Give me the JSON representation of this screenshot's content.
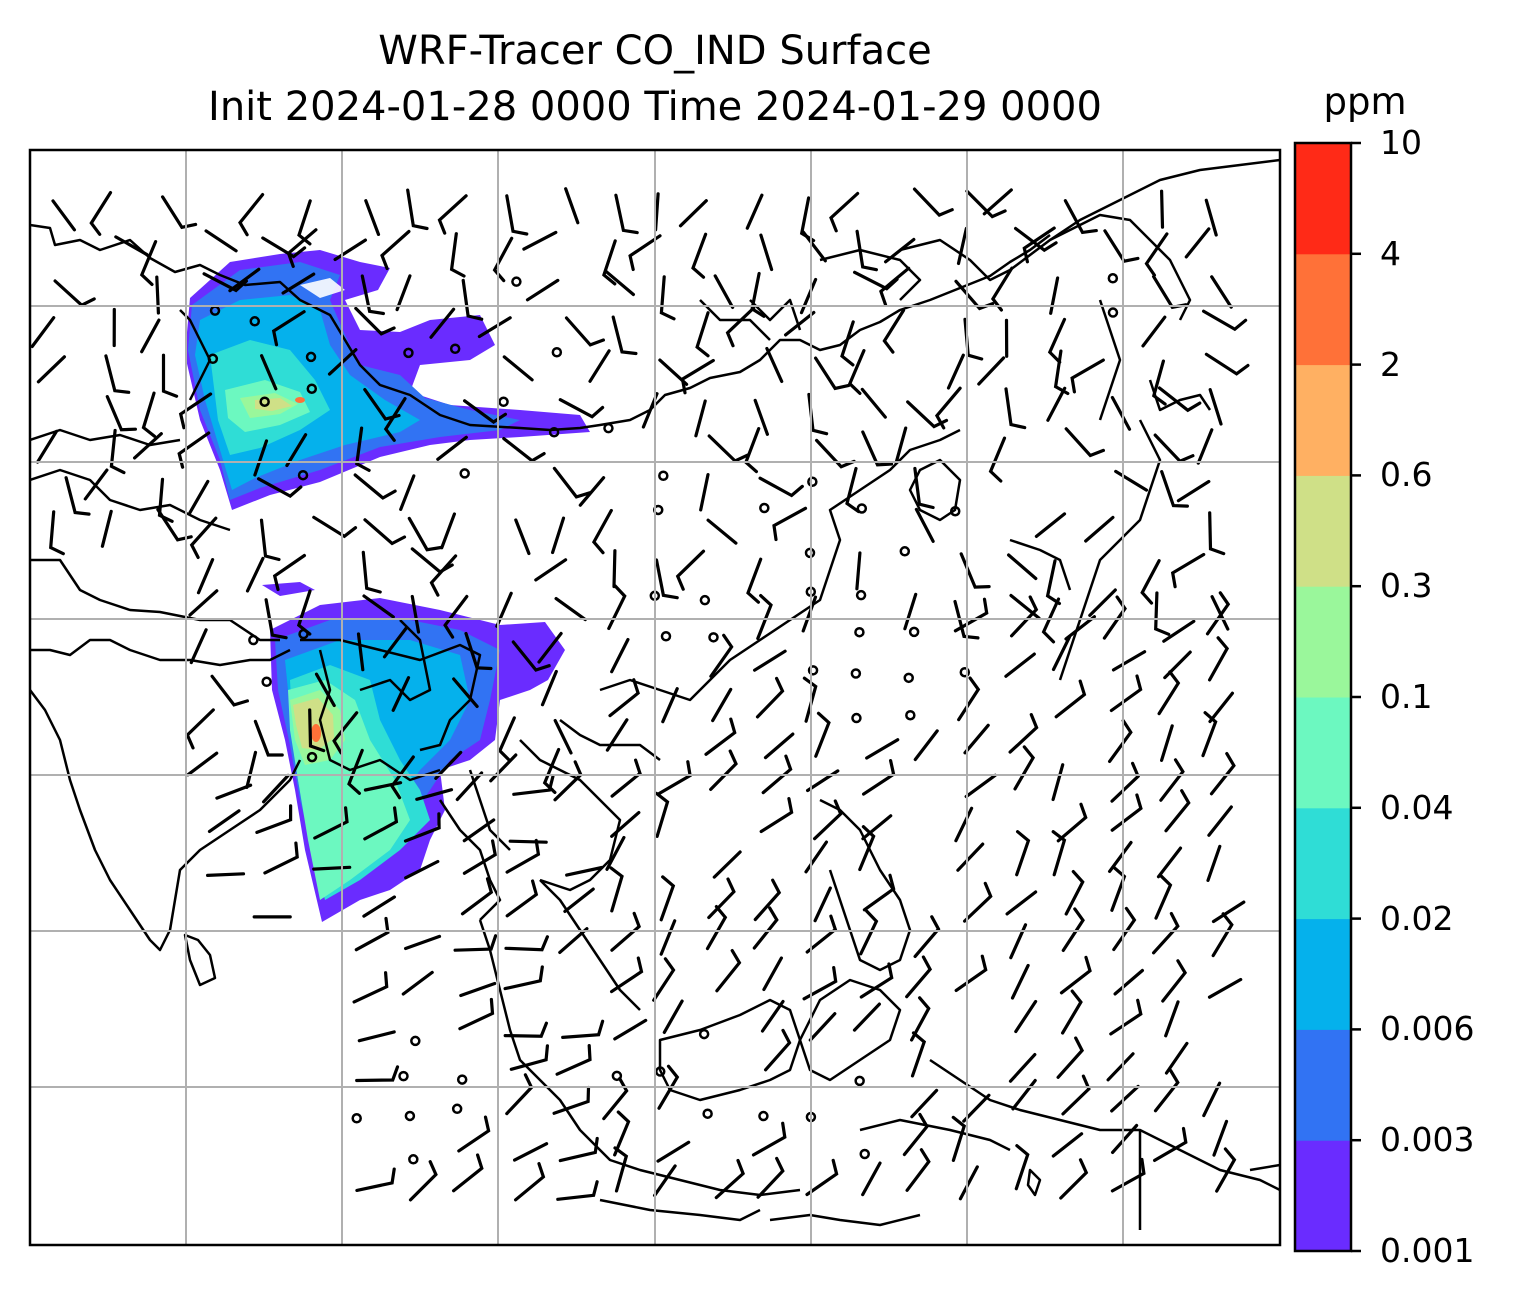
{
  "title": {
    "line1": "WRF-Tracer CO_IND Surface",
    "line2": "Init 2024-01-28 0000 Time 2024-01-29 0000"
  },
  "colorbar": {
    "unit": "ppm",
    "tick_labels": [
      "0.001",
      "0.003",
      "0.006",
      "0.02",
      "0.04",
      "0.1",
      "0.3",
      "0.6",
      "2",
      "4",
      "10"
    ],
    "colors": [
      "#6a2cff",
      "#3173f3",
      "#05b1ec",
      "#2fddd6",
      "#6cf8c0",
      "#9af79b",
      "#cfe087",
      "#ffb062",
      "#ff7138",
      "#ff2a17"
    ]
  },
  "map": {
    "gridlines": true,
    "content": "filled tracer concentration contours over coastlines and borders, overlaid with wind barbs and calm-wind circles"
  }
}
